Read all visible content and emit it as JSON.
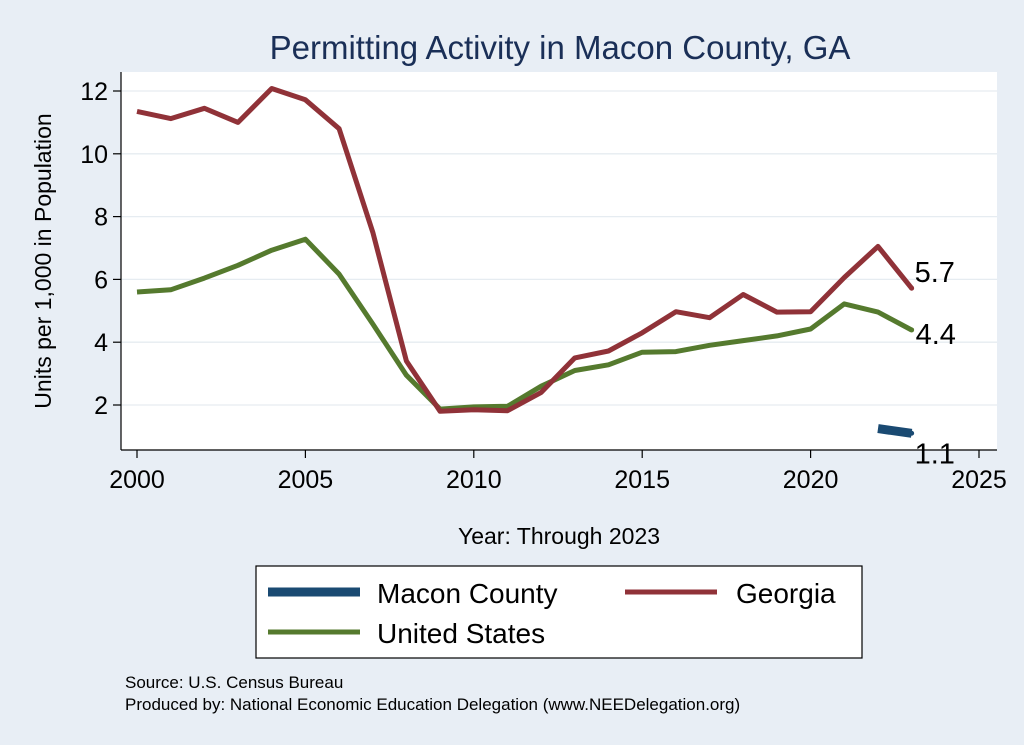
{
  "chart_data": {
    "type": "line",
    "title": "Permitting Activity in Macon County, GA",
    "xlabel": "Year: Through 2023",
    "ylabel": "Units per 1,000 in Population",
    "xlim": [
      2000,
      2025
    ],
    "ylim": [
      0.7,
      12.6
    ],
    "xticks": [
      2000,
      2005,
      2010,
      2015,
      2020,
      2025
    ],
    "yticks": [
      2,
      4,
      6,
      8,
      10,
      12
    ],
    "grid": true,
    "legend_position": "bottom",
    "series": [
      {
        "name": "Macon County",
        "color": "#1a4a72",
        "x": [
          2022,
          2023
        ],
        "values": [
          1.25,
          1.1
        ],
        "end_label": "1.1"
      },
      {
        "name": "Georgia",
        "color": "#903238",
        "x": [
          2000,
          2001,
          2002,
          2003,
          2004,
          2005,
          2006,
          2007,
          2008,
          2009,
          2010,
          2011,
          2012,
          2013,
          2014,
          2015,
          2016,
          2017,
          2018,
          2019,
          2020,
          2021,
          2022,
          2023
        ],
        "values": [
          11.35,
          11.12,
          11.45,
          11.0,
          12.08,
          11.72,
          10.8,
          7.5,
          3.4,
          1.8,
          1.85,
          1.82,
          2.4,
          3.5,
          3.72,
          4.3,
          4.97,
          4.78,
          5.52,
          4.96,
          4.97,
          6.06,
          7.05,
          5.72
        ],
        "end_label": "5.7"
      },
      {
        "name": "United States",
        "color": "#557a2e",
        "x": [
          2000,
          2001,
          2002,
          2003,
          2004,
          2005,
          2006,
          2007,
          2008,
          2009,
          2010,
          2011,
          2012,
          2013,
          2014,
          2015,
          2016,
          2017,
          2018,
          2019,
          2020,
          2021,
          2022,
          2023
        ],
        "values": [
          5.6,
          5.67,
          6.04,
          6.45,
          6.93,
          7.28,
          6.17,
          4.58,
          2.95,
          1.87,
          1.94,
          1.96,
          2.6,
          3.1,
          3.28,
          3.68,
          3.7,
          3.9,
          4.05,
          4.2,
          4.42,
          5.22,
          4.96,
          4.39
        ],
        "end_label": "4.4"
      }
    ]
  },
  "notes": {
    "source": "Source: U.S. Census Bureau",
    "produced_by": "Produced by: National Economic Education Delegation (www.NEEDelegation.org)"
  }
}
